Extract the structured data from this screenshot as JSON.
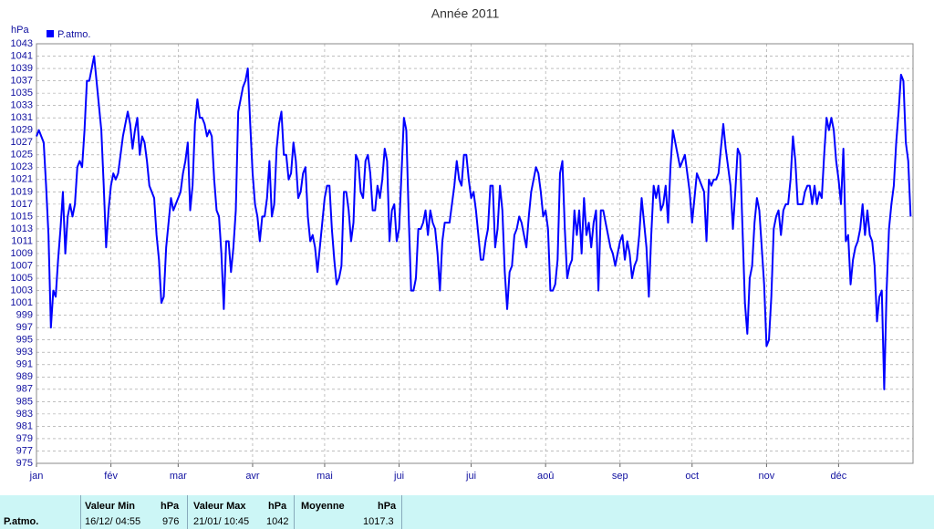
{
  "chart_data": {
    "type": "line",
    "title": "Année 2011",
    "y_label": "hPa",
    "x": [
      0,
      1,
      2,
      3,
      4,
      5,
      6,
      7,
      8,
      9,
      10,
      11,
      12,
      13,
      14,
      15,
      16,
      17,
      18,
      19,
      20,
      21,
      22,
      23,
      24,
      25,
      26,
      27,
      28,
      29,
      30,
      31,
      32,
      33,
      34,
      35,
      36,
      37,
      38,
      39,
      40,
      41,
      42,
      43,
      44,
      45,
      46,
      47,
      48,
      49,
      50,
      51,
      52,
      53,
      54,
      55,
      56,
      57,
      58,
      59,
      60,
      61,
      62,
      63,
      64,
      65,
      66,
      67,
      68,
      69,
      70,
      71,
      72,
      73,
      74,
      75,
      76,
      77,
      78,
      79,
      80,
      81,
      82,
      83,
      84,
      85,
      86,
      87,
      88,
      89,
      90,
      91,
      92,
      93,
      94,
      95,
      96,
      97,
      98,
      99,
      100,
      101,
      102,
      103,
      104,
      105,
      106,
      107,
      108,
      109,
      110,
      111,
      112,
      113,
      114,
      115,
      116,
      117,
      118,
      119,
      120,
      121,
      122,
      123,
      124,
      125,
      126,
      127,
      128,
      129,
      130,
      131,
      132,
      133,
      134,
      135,
      136,
      137,
      138,
      139,
      140,
      141,
      142,
      143,
      144,
      145,
      146,
      147,
      148,
      149,
      150,
      151,
      152,
      153,
      154,
      155,
      156,
      157,
      158,
      159,
      160,
      161,
      162,
      163,
      164,
      165,
      166,
      167,
      168,
      169,
      170,
      171,
      172,
      173,
      174,
      175,
      176,
      177,
      178,
      179,
      180,
      181,
      182,
      183,
      184,
      185,
      186,
      187,
      188,
      189,
      190,
      191,
      192,
      193,
      194,
      195,
      196,
      197,
      198,
      199,
      200,
      201,
      202,
      203,
      204,
      205,
      206,
      207,
      208,
      209,
      210,
      211,
      212,
      213,
      214,
      215,
      216,
      217,
      218,
      219,
      220,
      221,
      222,
      223,
      224,
      225,
      226,
      227,
      228,
      229,
      230,
      231,
      232,
      233,
      234,
      235,
      236,
      237,
      238,
      239,
      240,
      241,
      242,
      243,
      244,
      245,
      246,
      247,
      248,
      249,
      250,
      251,
      252,
      253,
      254,
      255,
      256,
      257,
      258,
      259,
      260,
      261,
      262,
      263,
      264,
      265,
      266,
      267,
      268,
      269,
      270,
      271,
      272,
      273,
      274,
      275,
      276,
      277,
      278,
      279,
      280,
      281,
      282,
      283,
      284,
      285,
      286,
      287,
      288,
      289,
      290,
      291,
      292,
      293,
      294,
      295,
      296,
      297,
      298,
      299,
      300,
      301,
      302,
      303,
      304,
      305,
      306,
      307,
      308,
      309,
      310,
      311,
      312,
      313,
      314,
      315,
      316,
      317,
      318,
      319,
      320,
      321,
      322,
      323,
      324,
      325,
      326,
      327,
      328,
      329,
      330,
      331,
      332,
      333,
      334,
      335,
      336,
      337,
      338,
      339,
      340,
      341,
      342,
      343,
      344,
      345,
      346,
      347,
      348,
      349,
      350,
      351,
      352,
      353,
      354,
      355,
      356,
      357,
      358,
      359,
      360,
      361,
      362,
      363,
      364
    ],
    "series": [
      {
        "name": "P.atmo.",
        "color": "#0000ff",
        "values": [
          1028,
          1029,
          1028,
          1027,
          1020,
          1012,
          997,
          1003,
          1002,
          1008,
          1013,
          1019,
          1009,
          1015,
          1017,
          1015,
          1017,
          1023,
          1024,
          1023,
          1029,
          1037,
          1037,
          1039,
          1041,
          1037,
          1033,
          1029,
          1020,
          1010,
          1016,
          1020,
          1022,
          1021,
          1022,
          1025,
          1028,
          1030,
          1032,
          1030,
          1026,
          1029,
          1031,
          1025,
          1028,
          1027,
          1024,
          1020,
          1019,
          1018,
          1012,
          1008,
          1001,
          1002,
          1010,
          1014,
          1018,
          1016,
          1017,
          1018,
          1019,
          1022,
          1024,
          1027,
          1016,
          1020,
          1030,
          1034,
          1031,
          1031,
          1030,
          1028,
          1029,
          1028,
          1021,
          1016,
          1015,
          1009,
          1000,
          1011,
          1011,
          1006,
          1010,
          1016,
          1032,
          1034,
          1036,
          1037,
          1039,
          1030,
          1022,
          1017,
          1015,
          1011,
          1015,
          1015,
          1018,
          1024,
          1015,
          1017,
          1026,
          1030,
          1032,
          1025,
          1025,
          1021,
          1022,
          1027,
          1024,
          1018,
          1019,
          1022,
          1023,
          1015,
          1011,
          1012,
          1010,
          1006,
          1010,
          1014,
          1018,
          1020,
          1020,
          1013,
          1008,
          1004,
          1005,
          1007,
          1019,
          1019,
          1016,
          1011,
          1014,
          1025,
          1024,
          1019,
          1018,
          1024,
          1025,
          1022,
          1016,
          1016,
          1020,
          1018,
          1021,
          1026,
          1024,
          1011,
          1016,
          1017,
          1011,
          1013,
          1022,
          1031,
          1029,
          1015,
          1003,
          1003,
          1005,
          1013,
          1013,
          1014,
          1016,
          1012,
          1016,
          1014,
          1013,
          1009,
          1003,
          1011,
          1014,
          1014,
          1014,
          1017,
          1020,
          1024,
          1021,
          1020,
          1025,
          1025,
          1021,
          1018,
          1019,
          1016,
          1012,
          1008,
          1008,
          1011,
          1013,
          1020,
          1020,
          1010,
          1013,
          1020,
          1016,
          1006,
          1000,
          1006,
          1007,
          1012,
          1013,
          1015,
          1014,
          1012,
          1010,
          1015,
          1019,
          1021,
          1023,
          1022,
          1019,
          1015,
          1016,
          1013,
          1003,
          1003,
          1004,
          1008,
          1022,
          1024,
          1013,
          1005,
          1007,
          1008,
          1016,
          1012,
          1016,
          1009,
          1018,
          1012,
          1014,
          1010,
          1014,
          1016,
          1003,
          1016,
          1016,
          1014,
          1012,
          1010,
          1009,
          1007,
          1009,
          1011,
          1012,
          1008,
          1011,
          1009,
          1005,
          1007,
          1008,
          1012,
          1018,
          1014,
          1010,
          1002,
          1012,
          1020,
          1018,
          1020,
          1016,
          1017,
          1020,
          1014,
          1023,
          1029,
          1027,
          1025,
          1023,
          1024,
          1025,
          1022,
          1019,
          1014,
          1018,
          1022,
          1021,
          1020,
          1019,
          1011,
          1021,
          1020,
          1021,
          1021,
          1022,
          1026,
          1030,
          1026,
          1023,
          1020,
          1013,
          1019,
          1026,
          1025,
          1013,
          1001,
          996,
          1005,
          1007,
          1014,
          1018,
          1016,
          1010,
          1004,
          994,
          995,
          1002,
          1013,
          1015,
          1016,
          1012,
          1016,
          1017,
          1017,
          1021,
          1028,
          1024,
          1017,
          1017,
          1017,
          1019,
          1020,
          1020,
          1017,
          1020,
          1017,
          1019,
          1018,
          1025,
          1031,
          1029,
          1031,
          1029,
          1024,
          1021,
          1017,
          1026,
          1011,
          1012,
          1004,
          1008,
          1010,
          1011,
          1013,
          1017,
          1012,
          1016,
          1012,
          1011,
          1007,
          998,
          1002,
          1003,
          987,
          1003,
          1013,
          1017,
          1020,
          1027,
          1032,
          1038,
          1037,
          1027,
          1024,
          1015
        ]
      }
    ],
    "xlim": [
      0,
      365
    ],
    "xticks": [
      {
        "value": 0,
        "label": "jan"
      },
      {
        "value": 31,
        "label": "fév"
      },
      {
        "value": 59,
        "label": "mar"
      },
      {
        "value": 90,
        "label": "avr"
      },
      {
        "value": 120,
        "label": "mai"
      },
      {
        "value": 151,
        "label": "jui"
      },
      {
        "value": 181,
        "label": "jui"
      },
      {
        "value": 212,
        "label": "aoû"
      },
      {
        "value": 243,
        "label": "sep"
      },
      {
        "value": 273,
        "label": "oct"
      },
      {
        "value": 304,
        "label": "nov"
      },
      {
        "value": 334,
        "label": "déc"
      }
    ],
    "ylim": [
      975,
      1043
    ],
    "yticks": [
      975,
      977,
      979,
      981,
      983,
      985,
      987,
      989,
      991,
      993,
      995,
      997,
      999,
      1001,
      1003,
      1005,
      1007,
      1009,
      1011,
      1013,
      1015,
      1017,
      1019,
      1021,
      1023,
      1025,
      1027,
      1029,
      1031,
      1033,
      1035,
      1037,
      1039,
      1041,
      1043
    ],
    "grid": true
  },
  "summary": {
    "row_label": "P.atmo.",
    "columns": [
      {
        "header": "Valeur Min",
        "unit": "hPa",
        "date": "16/12/ 04:55",
        "value": 976
      },
      {
        "header": "Valeur Max",
        "unit": "hPa",
        "date": "21/01/ 10:45",
        "value": 1042
      },
      {
        "header": "Moyenne",
        "unit": "hPa",
        "value": 1017.3
      }
    ]
  }
}
